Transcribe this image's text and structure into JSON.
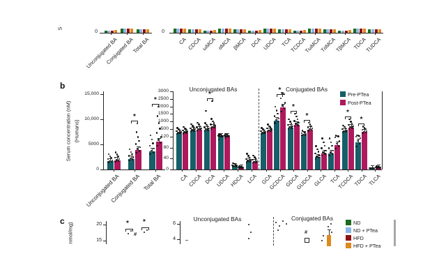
{
  "colors": {
    "pre": "#175e68",
    "post": "#ae195e",
    "nd": "#1d6b1f",
    "nd_ptea": "#88b8e8",
    "hfd": "#8e1111",
    "hfd_ptea": "#dd8a1e",
    "axis": "#222222",
    "dot": "#151515",
    "gray_line": "#a8a8a8"
  },
  "panel_a": {
    "ylabel_fragment": "S",
    "zero_label": "0",
    "left_categories": [
      "Unconjugated BA",
      "Conjugated BA",
      "Total BA"
    ],
    "right_categories": [
      "CA",
      "CDCA",
      "ωMCA",
      "αMCA",
      "βMCA",
      "DCA",
      "UDCA",
      "TCA",
      "TCDCA",
      "TωMCA",
      "TαMCA",
      "TβMCA",
      "TDCA",
      "TUDCA"
    ],
    "series": [
      "ND",
      "ND + PTea",
      "HFD",
      "HFD + PTea"
    ]
  },
  "panel_b": {
    "label": "b",
    "ylabel_line1": "Serum concentration (nM)",
    "ylabel_line2": "(Humans)",
    "legend": {
      "pre": "Pre-PTea",
      "post": "Post-PTea"
    },
    "sig_symbol": "*"
  },
  "panel_c": {
    "label": "c",
    "ylabel_fragment": "nmol/mg)",
    "axis1_ticks": [
      "20",
      "15"
    ],
    "axis2_ticks": [
      "6",
      "4"
    ],
    "title_unconjugated": "Unconjugated BAs",
    "title_conjugated": "Conjugated BAs",
    "star": "*",
    "hash": "#",
    "legend": [
      {
        "label": "ND",
        "color_key": "nd"
      },
      {
        "label": "ND + PTea",
        "color_key": "nd_ptea"
      },
      {
        "label": "HFD",
        "color_key": "hfd"
      },
      {
        "label": "HFD + PTea",
        "color_key": "hfd_ptea"
      }
    ]
  },
  "chart_data": [
    {
      "id": "b_totals",
      "type": "bar",
      "title": "",
      "ylabel": "Serum concentration (nM) (Humans)",
      "ylim": [
        0,
        15000
      ],
      "yticks": [
        {
          "v": 15000,
          "label": "15,000"
        },
        {
          "v": 10000,
          "label": "10,000"
        },
        {
          "v": 5000,
          "label": "5000"
        },
        {
          "v": 0,
          "label": "0"
        }
      ],
      "categories": [
        "Unconjugated BA",
        "Conjugated BA",
        "Total BA"
      ],
      "series": [
        {
          "name": "Pre-PTea",
          "values": [
            1600,
            2100,
            3600
          ]
        },
        {
          "name": "Post-PTea",
          "values": [
            1800,
            3900,
            5600
          ]
        }
      ],
      "significant": [
        "Conjugated BA",
        "Total BA"
      ],
      "outlier_points": {
        "Conjugated BA": {
          "Post-PTea": [
            9200
          ]
        },
        "Total BA": {
          "Post-PTea": [
            12500
          ]
        }
      },
      "legend_position": "right-chart-top"
    },
    {
      "id": "b_unconjugated",
      "type": "bar",
      "title": "Unconjugated BAs",
      "ylim": [
        0,
        3000
      ],
      "axis_break": [
        120,
        500
      ],
      "yticks": [
        {
          "v": 3000,
          "label": "3000"
        },
        {
          "v": 2500,
          "label": "2500"
        },
        {
          "v": 2000,
          "label": "2000"
        },
        {
          "v": 1500,
          "label": "1500"
        },
        {
          "v": 1000,
          "label": "1000"
        },
        {
          "v": 500,
          "label": "500"
        },
        {
          "v": 120,
          "label": "120"
        },
        {
          "v": 80,
          "label": "80"
        },
        {
          "v": 40,
          "label": "40"
        },
        {
          "v": 0,
          "label": "0"
        }
      ],
      "categories": [
        "CA",
        "CDCA",
        "DCA",
        "UDCA",
        "HDCA",
        "LCA"
      ],
      "series": [
        {
          "name": "Pre-PTea",
          "values": [
            300,
            430,
            470,
            130,
            12,
            30
          ]
        },
        {
          "name": "Post-PTea",
          "values": [
            330,
            480,
            620,
            135,
            6,
            27
          ]
        }
      ],
      "significant": [
        "DCA"
      ],
      "outlier_points": {
        "DCA": {
          "Pre-PTea": [
            1700
          ],
          "Post-PTea": [
            2350
          ]
        }
      }
    },
    {
      "id": "b_conjugated",
      "type": "bar",
      "title": "Conjugated BAs",
      "ylim": [
        0,
        3000
      ],
      "axis_break": [
        120,
        500
      ],
      "categories": [
        "GCA",
        "GCDCA",
        "GDCA",
        "GUDCA",
        "GLCA",
        "TCA",
        "TCDCA",
        "TDCA",
        "TLCA"
      ],
      "series": [
        {
          "name": "Pre-PTea",
          "values": [
            300,
            1050,
            600,
            220,
            45,
            60,
            380,
            100,
            3
          ]
        },
        {
          "name": "Post-PTea",
          "values": [
            420,
            1950,
            800,
            480,
            60,
            90,
            600,
            350,
            6
          ]
        }
      ],
      "significant": [
        "GCDCA",
        "GDCA",
        "GUDCA",
        "TCDCA",
        "TDCA"
      ],
      "outlier_points": {
        "GCDCA": {
          "Post-PTea": [
            2850
          ]
        }
      }
    }
  ]
}
